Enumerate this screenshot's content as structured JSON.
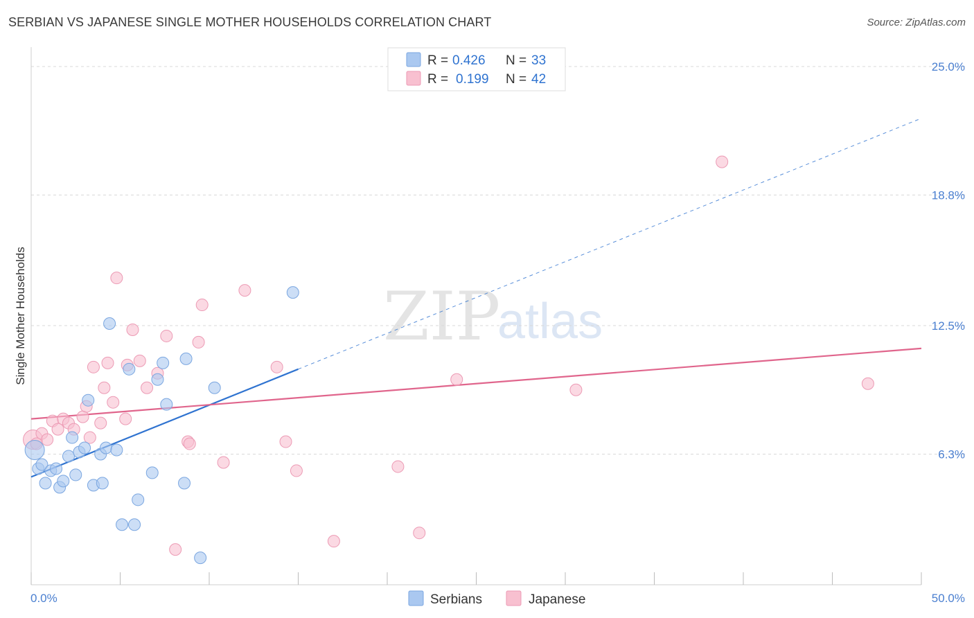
{
  "header": {
    "title": "SERBIAN VS JAPANESE SINGLE MOTHER HOUSEHOLDS CORRELATION CHART",
    "source": "Source: ZipAtlas.com"
  },
  "watermark": {
    "zip": "ZIP",
    "atlas": "atlas"
  },
  "legend": {
    "rows": [
      {
        "r_label": "R = ",
        "r_value": "0.426",
        "n_label": "N = ",
        "n_value": "33"
      },
      {
        "r_label": "R = ",
        "r_value": "0.199",
        "n_label": "N = ",
        "n_value": "42"
      }
    ]
  },
  "bottom_legend": {
    "serbians": "Serbians",
    "japanese": "Japanese"
  },
  "colors": {
    "serbians_fill": "#aac8f0",
    "serbians_stroke": "#7aa6e0",
    "serbians_line": "#2f73d0",
    "japanese_fill": "#f8c0d0",
    "japanese_stroke": "#ec9ab4",
    "japanese_line": "#e0658c",
    "tick": "#4a7fd0",
    "grid": "#d8d8d8"
  },
  "chart_data": {
    "type": "scatter",
    "title": "SERBIAN VS JAPANESE SINGLE MOTHER HOUSEHOLDS CORRELATION CHART",
    "xlabel": "",
    "ylabel": "Single Mother Households",
    "xlim": [
      0,
      50
    ],
    "ylim": [
      0,
      25.0
    ],
    "x_tick_labels": [
      "0.0%",
      "50.0%"
    ],
    "y_ticks": [
      6.3,
      12.5,
      18.8,
      25.0
    ],
    "y_tick_labels": [
      "6.3%",
      "12.5%",
      "18.8%",
      "25.0%"
    ],
    "grid": true,
    "legend_position": "top-center",
    "series": [
      {
        "name": "Serbians",
        "r": 0.426,
        "n": 33,
        "points": [
          [
            0.2,
            6.5
          ],
          [
            0.4,
            5.6
          ],
          [
            0.6,
            5.8
          ],
          [
            0.8,
            4.9
          ],
          [
            1.1,
            5.5
          ],
          [
            1.4,
            5.6
          ],
          [
            1.6,
            4.7
          ],
          [
            1.8,
            5.0
          ],
          [
            2.1,
            6.2
          ],
          [
            2.3,
            7.1
          ],
          [
            2.5,
            5.3
          ],
          [
            2.7,
            6.4
          ],
          [
            3.0,
            6.6
          ],
          [
            3.2,
            8.9
          ],
          [
            3.5,
            4.8
          ],
          [
            3.9,
            6.3
          ],
          [
            4.0,
            4.9
          ],
          [
            4.2,
            6.6
          ],
          [
            4.4,
            12.6
          ],
          [
            4.8,
            6.5
          ],
          [
            5.1,
            2.9
          ],
          [
            5.5,
            10.4
          ],
          [
            5.8,
            2.9
          ],
          [
            6.0,
            4.1
          ],
          [
            6.8,
            5.4
          ],
          [
            7.1,
            9.9
          ],
          [
            7.4,
            10.7
          ],
          [
            7.6,
            8.7
          ],
          [
            8.6,
            4.9
          ],
          [
            8.7,
            10.9
          ],
          [
            9.5,
            1.3
          ],
          [
            10.3,
            9.5
          ],
          [
            14.7,
            14.1
          ]
        ]
      },
      {
        "name": "Japanese",
        "r": 0.199,
        "n": 42,
        "points": [
          [
            0.1,
            7.0
          ],
          [
            0.3,
            6.8
          ],
          [
            0.6,
            7.3
          ],
          [
            0.9,
            7.0
          ],
          [
            1.2,
            7.9
          ],
          [
            1.5,
            7.5
          ],
          [
            1.8,
            8.0
          ],
          [
            2.1,
            7.8
          ],
          [
            2.4,
            7.5
          ],
          [
            2.9,
            8.1
          ],
          [
            3.1,
            8.6
          ],
          [
            3.3,
            7.1
          ],
          [
            3.5,
            10.5
          ],
          [
            3.9,
            7.8
          ],
          [
            4.1,
            9.5
          ],
          [
            4.3,
            10.7
          ],
          [
            4.6,
            8.8
          ],
          [
            4.8,
            14.8
          ],
          [
            5.3,
            8.0
          ],
          [
            5.4,
            10.6
          ],
          [
            5.7,
            12.3
          ],
          [
            6.1,
            10.8
          ],
          [
            6.5,
            9.5
          ],
          [
            7.1,
            10.2
          ],
          [
            7.6,
            12.0
          ],
          [
            8.1,
            1.7
          ],
          [
            8.8,
            6.9
          ],
          [
            8.9,
            6.8
          ],
          [
            9.4,
            11.7
          ],
          [
            9.6,
            13.5
          ],
          [
            10.8,
            5.9
          ],
          [
            12.0,
            14.2
          ],
          [
            13.8,
            10.5
          ],
          [
            14.3,
            6.9
          ],
          [
            14.9,
            5.5
          ],
          [
            17.0,
            2.1
          ],
          [
            20.6,
            5.7
          ],
          [
            21.8,
            2.5
          ],
          [
            23.9,
            9.9
          ],
          [
            30.6,
            9.4
          ],
          [
            38.8,
            20.4
          ],
          [
            47.0,
            9.7
          ]
        ]
      }
    ],
    "trend_lines": [
      {
        "series": "Serbians",
        "x": [
          0,
          15
        ],
        "y": [
          5.2,
          10.4
        ],
        "dashed_extension": {
          "x": [
            15,
            50
          ],
          "y": [
            10.4,
            22.5
          ]
        }
      },
      {
        "series": "Japanese",
        "x": [
          0,
          50
        ],
        "y": [
          8.0,
          11.4
        ]
      }
    ]
  }
}
